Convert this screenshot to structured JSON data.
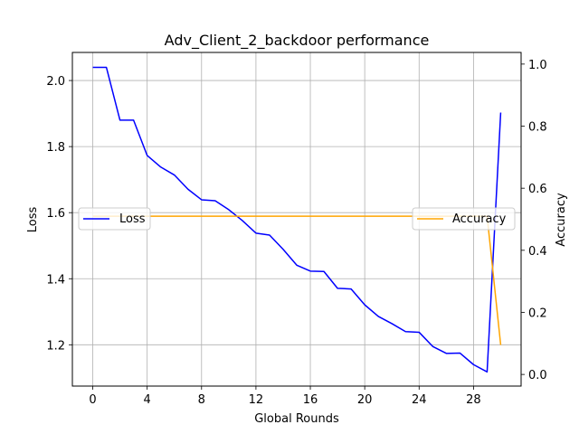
{
  "chart_data": {
    "type": "line",
    "title": "Adv_Client_2_backdoor performance",
    "xlabel": "Global Rounds",
    "ylabel_left": "Loss",
    "ylabel_right": "Accuracy",
    "xlim": [
      -1.5,
      31.5
    ],
    "ylim_left": [
      1.075,
      2.085
    ],
    "ylim_right": [
      -0.0375,
      1.0375
    ],
    "x_ticks": [
      0,
      4,
      8,
      12,
      16,
      20,
      24,
      28
    ],
    "y_ticks_left": [
      1.2,
      1.4,
      1.6,
      1.8,
      2.0
    ],
    "y_ticks_right": [
      0.0,
      0.2,
      0.4,
      0.6,
      0.8,
      1.0
    ],
    "y_tick_labels_left": [
      "1.2",
      "1.4",
      "1.6",
      "1.8",
      "2.0"
    ],
    "y_tick_labels_right": [
      "0.0",
      "0.2",
      "0.4",
      "0.6",
      "0.8",
      "1.0"
    ],
    "grid": true,
    "x": [
      0,
      1,
      2,
      3,
      4,
      5,
      6,
      7,
      8,
      9,
      10,
      11,
      12,
      13,
      14,
      15,
      16,
      17,
      18,
      19,
      20,
      21,
      22,
      23,
      24,
      25,
      26,
      27,
      28,
      29,
      30
    ],
    "series": [
      {
        "name": "Loss",
        "axis": "left",
        "color": "#0000ff",
        "values": [
          2.04,
          2.04,
          1.88,
          1.88,
          1.773,
          1.738,
          1.714,
          1.671,
          1.639,
          1.636,
          1.609,
          1.576,
          1.538,
          1.532,
          1.489,
          1.441,
          1.423,
          1.422,
          1.371,
          1.369,
          1.321,
          1.286,
          1.264,
          1.24,
          1.238,
          1.195,
          1.174,
          1.175,
          1.14,
          1.118,
          1.903
        ]
      },
      {
        "name": "Accuracy",
        "axis": "right",
        "color": "#ffa500",
        "values": [
          0.51,
          0.51,
          0.51,
          0.51,
          0.51,
          0.51,
          0.51,
          0.51,
          0.51,
          0.51,
          0.51,
          0.51,
          0.51,
          0.51,
          0.51,
          0.51,
          0.51,
          0.51,
          0.51,
          0.51,
          0.51,
          0.51,
          0.51,
          0.51,
          0.51,
          0.51,
          0.51,
          0.51,
          0.51,
          0.51,
          0.095
        ]
      }
    ],
    "legends": [
      {
        "label": "Loss",
        "placement": "center-left"
      },
      {
        "label": "Accuracy",
        "placement": "center-right"
      }
    ]
  }
}
